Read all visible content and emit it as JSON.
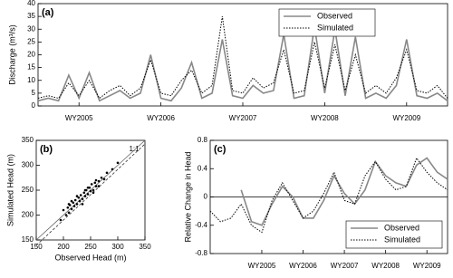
{
  "chart_data": [
    {
      "type": "line",
      "title": "(a)",
      "y_label": "Discharge (m³/s)",
      "x": [
        0,
        0.125,
        0.25,
        0.375,
        0.5,
        0.625,
        0.75,
        0.875,
        1,
        1.125,
        1.25,
        1.375,
        1.5,
        1.625,
        1.75,
        1.875,
        2,
        2.125,
        2.25,
        2.375,
        2.5,
        2.625,
        2.75,
        2.875,
        3,
        3.125,
        3.25,
        3.375,
        3.5,
        3.625,
        3.75,
        3.875,
        4,
        4.125,
        4.25,
        4.375,
        4.5,
        4.625,
        4.75,
        4.875,
        5
      ],
      "series": [
        {
          "name": "Observed",
          "color": "#888888",
          "dash": "solid",
          "values": [
            2,
            3,
            2,
            12,
            3,
            13,
            2,
            4,
            6,
            3,
            5,
            20,
            3,
            2,
            7,
            17,
            3,
            5,
            26,
            4,
            3,
            8,
            5,
            6,
            28,
            3,
            4,
            31,
            5,
            30,
            4,
            27,
            3,
            5,
            3,
            8,
            26,
            4,
            3,
            5,
            2
          ]
        },
        {
          "name": "Simulated",
          "color": "#000000",
          "dash": "dotted",
          "values": [
            3,
            4,
            3,
            9,
            4,
            10,
            3,
            6,
            8,
            4,
            7,
            18,
            5,
            4,
            10,
            14,
            5,
            8,
            35,
            6,
            5,
            11,
            7,
            9,
            22,
            5,
            6,
            25,
            7,
            24,
            6,
            20,
            5,
            8,
            5,
            11,
            22,
            6,
            5,
            8,
            3
          ]
        }
      ],
      "xlim": [
        0,
        5
      ],
      "xticks": [
        {
          "value": 0.5,
          "label": "WY2005"
        },
        {
          "value": 1.5,
          "label": "WY2006"
        },
        {
          "value": 2.5,
          "label": "WY2007"
        },
        {
          "value": 3.5,
          "label": "WY2008"
        },
        {
          "value": 4.5,
          "label": "WY2009"
        }
      ],
      "ylim": [
        0,
        40
      ],
      "yticks": [
        0,
        5,
        10,
        15,
        20,
        25,
        30,
        35,
        40
      ],
      "legend": "top-center"
    },
    {
      "type": "scatter",
      "title": "(b)",
      "x_label": "Observed Head (m)",
      "y_label": "Simulated Head (m)",
      "annotation": "1:1",
      "color": "#000000",
      "x": [
        195,
        200,
        205,
        208,
        210,
        212,
        215,
        218,
        220,
        222,
        225,
        228,
        230,
        232,
        235,
        238,
        240,
        242,
        245,
        248,
        250,
        252,
        255,
        258,
        260,
        265,
        270,
        275,
        280,
        290,
        300,
        215,
        235,
        255,
        225,
        245,
        265,
        210,
        240,
        260
      ],
      "values": [
        190,
        210,
        200,
        215,
        205,
        220,
        212,
        225,
        218,
        230,
        222,
        235,
        228,
        240,
        232,
        245,
        238,
        250,
        242,
        255,
        248,
        262,
        250,
        265,
        258,
        268,
        275,
        272,
        285,
        292,
        305,
        228,
        222,
        245,
        238,
        255,
        258,
        222,
        250,
        270
      ],
      "xlim": [
        150,
        350
      ],
      "xticks": [
        150,
        200,
        250,
        300,
        350
      ],
      "ylim": [
        150,
        350
      ],
      "yticks": [
        150,
        200,
        250,
        300,
        350
      ]
    },
    {
      "type": "line",
      "title": "(c)",
      "y_label": "Relative Change in Head",
      "x": [
        -0.75,
        -0.5,
        -0.25,
        0,
        0.25,
        0.5,
        0.75,
        1,
        1.25,
        1.5,
        1.75,
        2,
        2.25,
        2.5,
        2.75,
        3,
        3.25,
        3.5,
        3.75,
        4,
        4.25,
        4.5,
        4.75,
        5
      ],
      "series": [
        {
          "name": "Observed",
          "color": "#888888",
          "dash": "solid",
          "values": [
            null,
            null,
            null,
            0.1,
            -0.35,
            -0.4,
            -0.1,
            0.15,
            0.0,
            -0.3,
            -0.3,
            -0.05,
            0.3,
            0.05,
            -0.1,
            0.1,
            0.5,
            0.3,
            0.2,
            0.15,
            0.45,
            0.55,
            0.35,
            0.25
          ]
        },
        {
          "name": "Simulated",
          "color": "#000000",
          "dash": "dotted",
          "values": [
            -0.2,
            -0.35,
            -0.3,
            -0.1,
            -0.4,
            -0.5,
            -0.05,
            0.2,
            -0.05,
            -0.3,
            -0.2,
            0.05,
            0.35,
            -0.05,
            -0.1,
            0.3,
            0.5,
            0.25,
            0.1,
            0.15,
            0.55,
            0.35,
            0.2,
            0.1
          ]
        }
      ],
      "xlim": [
        -0.75,
        5
      ],
      "xticks": [
        {
          "value": 0.5,
          "label": "WY2005"
        },
        {
          "value": 1.5,
          "label": "WY2006"
        },
        {
          "value": 2.5,
          "label": "WY2007"
        },
        {
          "value": 3.5,
          "label": "WY2008"
        },
        {
          "value": 4.5,
          "label": "WY2009"
        }
      ],
      "ylim": [
        -0.8,
        0.8
      ],
      "yticks": [
        -0.8,
        -0.4,
        0,
        0.4,
        0.8
      ],
      "reference_line": 0,
      "legend": "bottom-right"
    }
  ]
}
